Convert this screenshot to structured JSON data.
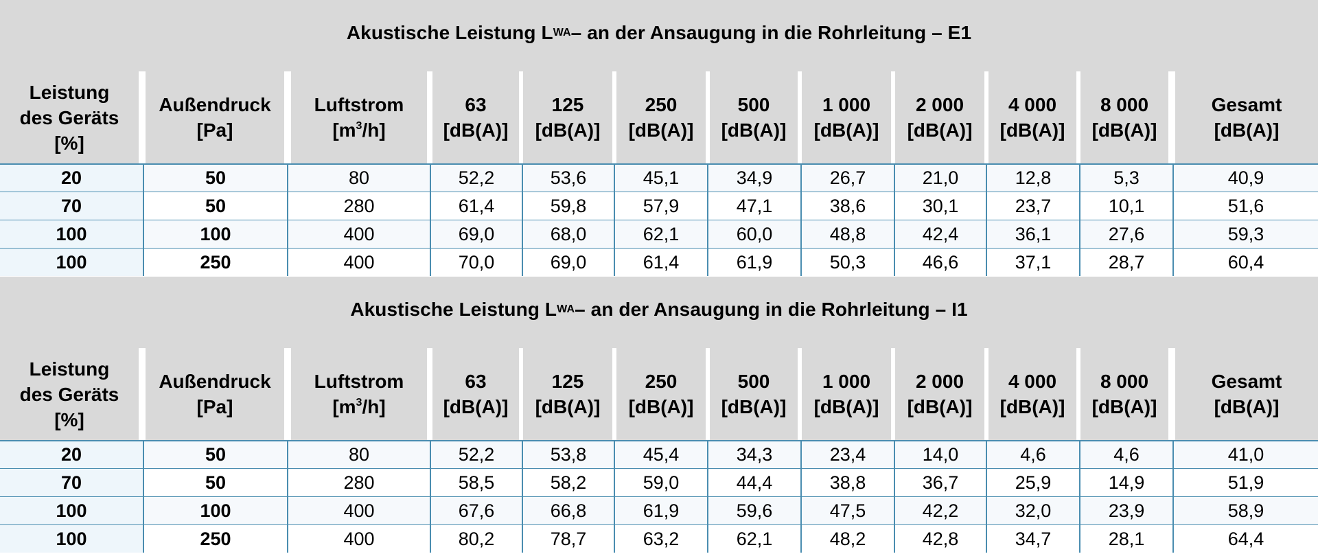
{
  "tables": [
    {
      "title_main": "Akustische Leistung L",
      "title_sub": "WA",
      "title_rest": " – an der Ansaugung in die Rohrleitung – E1",
      "headers": [
        {
          "lines": [
            "Leistung",
            "des Geräts",
            "[%]"
          ]
        },
        {
          "lines": [
            "Außendruck",
            "[Pa]"
          ]
        },
        {
          "lines": [
            "Luftstrom",
            "[m",
            "/h]"
          ],
          "sup": "3"
        },
        {
          "lines": [
            "63",
            "[dB(A)]"
          ]
        },
        {
          "lines": [
            "125",
            "[dB(A)]"
          ]
        },
        {
          "lines": [
            "250",
            "[dB(A)]"
          ]
        },
        {
          "lines": [
            "500",
            "[dB(A)]"
          ]
        },
        {
          "lines": [
            "1 000",
            "[dB(A)]"
          ]
        },
        {
          "lines": [
            "2 000",
            "[dB(A)]"
          ]
        },
        {
          "lines": [
            "4 000",
            "[dB(A)]"
          ]
        },
        {
          "lines": [
            "8 000",
            "[dB(A)]"
          ]
        },
        {
          "lines": [
            "Gesamt",
            "[dB(A)]"
          ]
        }
      ],
      "rows": [
        [
          "20",
          "50",
          "80",
          "52,2",
          "53,6",
          "45,1",
          "34,9",
          "26,7",
          "21,0",
          "12,8",
          "5,3",
          "40,9"
        ],
        [
          "70",
          "50",
          "280",
          "61,4",
          "59,8",
          "57,9",
          "47,1",
          "38,6",
          "30,1",
          "23,7",
          "10,1",
          "51,6"
        ],
        [
          "100",
          "100",
          "400",
          "69,0",
          "68,0",
          "62,1",
          "60,0",
          "48,8",
          "42,4",
          "36,1",
          "27,6",
          "59,3"
        ],
        [
          "100",
          "250",
          "400",
          "70,0",
          "69,0",
          "61,4",
          "61,9",
          "50,3",
          "46,6",
          "37,1",
          "28,7",
          "60,4"
        ]
      ]
    },
    {
      "title_main": "Akustische Leistung L",
      "title_sub": "WA",
      "title_rest": " – an der Ansaugung in die Rohrleitung – I1",
      "headers": [
        {
          "lines": [
            "Leistung",
            "des Geräts",
            "[%]"
          ]
        },
        {
          "lines": [
            "Außendruck",
            "[Pa]"
          ]
        },
        {
          "lines": [
            "Luftstrom",
            "[m",
            "/h]"
          ],
          "sup": "3"
        },
        {
          "lines": [
            "63",
            "[dB(A)]"
          ]
        },
        {
          "lines": [
            "125",
            "[dB(A)]"
          ]
        },
        {
          "lines": [
            "250",
            "[dB(A)]"
          ]
        },
        {
          "lines": [
            "500",
            "[dB(A)]"
          ]
        },
        {
          "lines": [
            "1 000",
            "[dB(A)]"
          ]
        },
        {
          "lines": [
            "2 000",
            "[dB(A)]"
          ]
        },
        {
          "lines": [
            "4 000",
            "[dB(A)]"
          ]
        },
        {
          "lines": [
            "8 000",
            "[dB(A)]"
          ]
        },
        {
          "lines": [
            "Gesamt",
            "[dB(A)]"
          ]
        }
      ],
      "rows": [
        [
          "20",
          "50",
          "80",
          "52,2",
          "53,8",
          "45,4",
          "34,3",
          "23,4",
          "14,0",
          "4,6",
          "4,6",
          "41,0"
        ],
        [
          "70",
          "50",
          "280",
          "58,5",
          "58,2",
          "59,0",
          "44,4",
          "38,8",
          "36,7",
          "25,9",
          "14,9",
          "51,9"
        ],
        [
          "100",
          "100",
          "400",
          "67,6",
          "66,8",
          "61,9",
          "59,6",
          "47,5",
          "42,2",
          "32,0",
          "23,9",
          "58,9"
        ],
        [
          "100",
          "250",
          "400",
          "80,2",
          "78,7",
          "63,2",
          "62,1",
          "48,2",
          "42,8",
          "34,7",
          "28,1",
          "64,4"
        ]
      ]
    }
  ],
  "colors": {
    "header_bg": "#d9d9d9",
    "rule": "#4a8db0",
    "row_alt": "#f6f9fc",
    "first_col": "#eef6fb"
  }
}
